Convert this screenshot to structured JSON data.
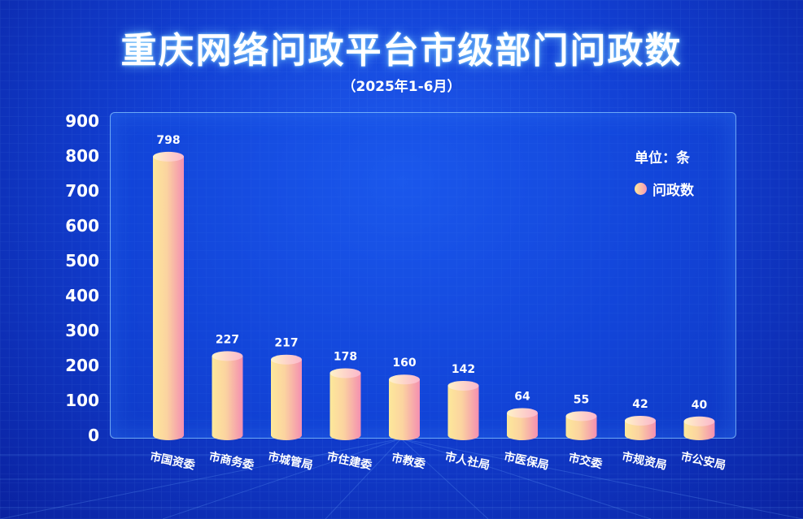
{
  "title": "重庆网络问政平台市级部门问政数",
  "subtitle": "（2025年1-6月）",
  "unit_label": "单位：条",
  "colors": {
    "bar_light": "#fde89a",
    "bar_dark": "#f48fb1",
    "background": "#1240d4"
  },
  "chart_data": {
    "type": "bar",
    "categories": [
      "市国资委",
      "市商务委",
      "市城管局",
      "市住建委",
      "市教委",
      "市人社局",
      "市医保局",
      "市交委",
      "市规资局",
      "市公安局"
    ],
    "series": [
      {
        "name": "问政数",
        "values": [
          798,
          227,
          217,
          178,
          160,
          142,
          64,
          55,
          42,
          40
        ]
      }
    ],
    "yticks": [
      0,
      100,
      200,
      300,
      400,
      500,
      600,
      700,
      800,
      900
    ],
    "ylim": [
      0,
      900
    ],
    "legend_position": "top-right",
    "grid": true
  }
}
